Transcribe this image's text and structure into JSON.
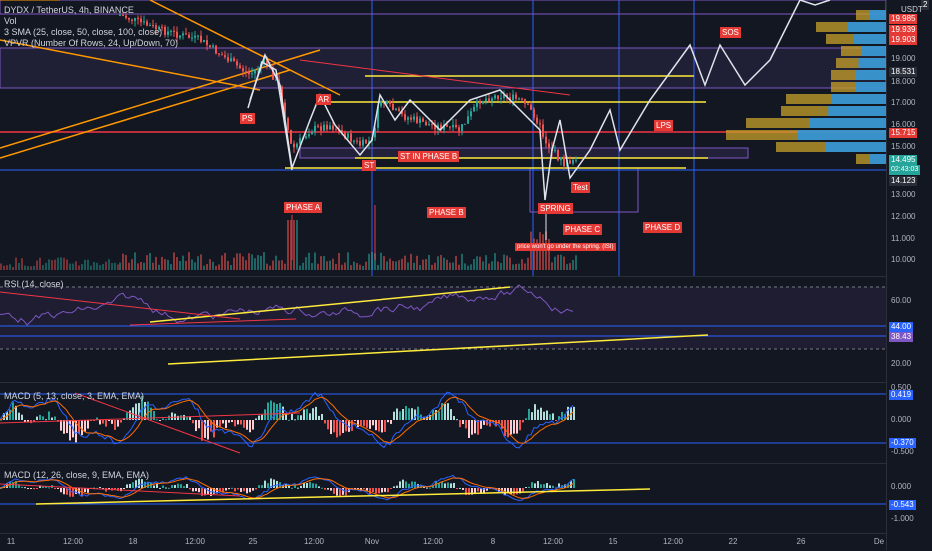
{
  "colors": {
    "background": "#131722",
    "up": "#26a69a",
    "down": "#ef5350",
    "yellow": "#ffeb3b",
    "red": "#f23645",
    "orange": "#ff9800",
    "purple": "#7e57c2",
    "blue": "#2962ff"
  },
  "header": {
    "symbol": "DYDX / TetherUS, 4h, BINANCE",
    "vol": "Vol",
    "sma": "3 SMA (25, close, 50, close, 100, close)",
    "vpvr": "VPVR (Number Of Rows, 24, Up/Down, 70)"
  },
  "price_axis": {
    "currency": "USDT",
    "ticks": [
      "19.000",
      "18.000",
      "17.000",
      "16.000",
      "15.000",
      "13.000",
      "12.000",
      "11.000",
      "10.000"
    ],
    "tags": [
      "19.985",
      "19.939",
      "19.903",
      "18.531",
      "15.715",
      "14.495",
      "02:43:03",
      "14.123"
    ],
    "top_tag": "2"
  },
  "annotations": {
    "ps": "PS",
    "ar": "AR",
    "st": "ST",
    "st_phase_b": "ST IN PHASE B",
    "phase_a": "PHASE A",
    "phase_b": "PHASE B",
    "spring": "SPRING",
    "phase_c": "PHASE C",
    "phase_d": "PHASE D",
    "test": "Test",
    "lps": "LPS",
    "sos": "SOS",
    "note": "price won't go under the spring. (ISI)"
  },
  "rsi": {
    "title": "RSI (14, close)",
    "ticks": [
      "60.00",
      "40.00",
      "20.00"
    ],
    "tags": [
      "44.00",
      "38.43"
    ]
  },
  "macd1": {
    "title": "MACD (5, 13, close, 3, EMA, EMA)",
    "ticks": [
      "0.500",
      "0.000",
      "-0.500"
    ],
    "tags": [
      "0.419",
      "-0.370"
    ]
  },
  "macd2": {
    "title": "MACD (12, 26, close, 9, EMA, EMA)",
    "ticks": [
      "0.000",
      "-1.000"
    ],
    "tags": [
      "-0.543"
    ]
  },
  "time_axis": [
    "11",
    "12:00",
    "18",
    "12:00",
    "25",
    "12:00",
    "Nov",
    "12:00",
    "8",
    "12:00",
    "15",
    "12:00",
    "22",
    "26",
    "De"
  ]
}
